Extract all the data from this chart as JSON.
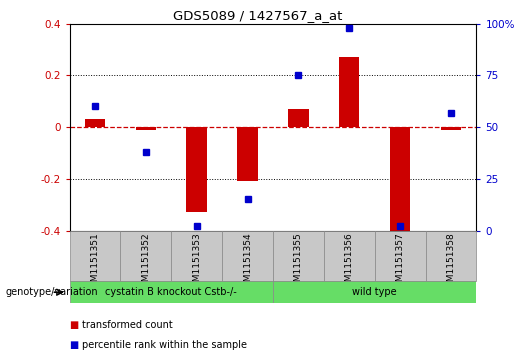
{
  "title": "GDS5089 / 1427567_a_at",
  "samples": [
    "GSM1151351",
    "GSM1151352",
    "GSM1151353",
    "GSM1151354",
    "GSM1151355",
    "GSM1151356",
    "GSM1151357",
    "GSM1151358"
  ],
  "red_values": [
    0.03,
    -0.01,
    -0.33,
    -0.21,
    0.07,
    0.27,
    -0.4,
    -0.01
  ],
  "blue_values": [
    60,
    38,
    2,
    15,
    75,
    98,
    2,
    57
  ],
  "ylim_left": [
    -0.4,
    0.4
  ],
  "ylim_right": [
    0,
    100
  ],
  "yticks_left": [
    -0.4,
    -0.2,
    0.0,
    0.2,
    0.4
  ],
  "yticks_right": [
    0,
    25,
    50,
    75,
    100
  ],
  "groups": [
    {
      "label": "cystatin B knockout Cstb-/-",
      "start": 0,
      "end": 3,
      "color": "#66DD66"
    },
    {
      "label": "wild type",
      "start": 4,
      "end": 7,
      "color": "#66DD66"
    }
  ],
  "group_row_label": "genotype/variation",
  "red_color": "#CC0000",
  "blue_color": "#0000CC",
  "zero_line_color": "#CC0000",
  "dotted_line_color": "#000000",
  "legend_red_label": "transformed count",
  "legend_blue_label": "percentile rank within the sample",
  "background_color": "#FFFFFF",
  "plot_bg_color": "#FFFFFF",
  "tick_bg_color": "#C8C8C8",
  "bar_width": 0.4,
  "marker_size": 5
}
